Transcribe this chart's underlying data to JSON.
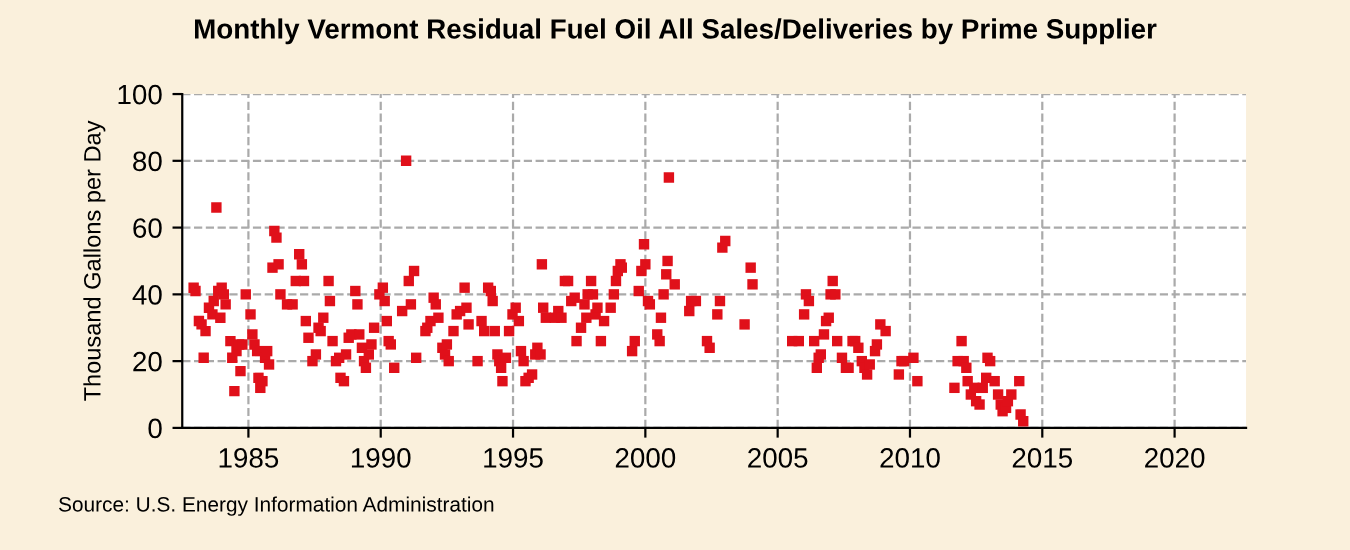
{
  "chart_data": {
    "type": "scatter",
    "title": "Monthly Vermont Residual Fuel Oil All Sales/Deliveries by Prime Supplier",
    "ylabel": "Thousand Gallons per Day",
    "annotations": [
      "Source: U.S. Energy Information Administration"
    ],
    "xlim": [
      1982.5,
      2022.7
    ],
    "xticks": [
      1985,
      1990,
      1995,
      2000,
      2005,
      2010,
      2015,
      2020
    ],
    "ylim": [
      0,
      100
    ],
    "yticks": [
      0,
      20,
      40,
      60,
      80,
      100
    ],
    "grid": true,
    "marker": "square",
    "legend": false,
    "series": [
      {
        "color": "#e0101a",
        "x": [
          1982.93,
          1983.0,
          1983.13,
          1983.23,
          1983.31,
          1983.38,
          1983.51,
          1983.64,
          1983.69,
          1983.79,
          1983.86,
          1983.94,
          1983.99,
          1984.07,
          1984.14,
          1984.32,
          1984.39,
          1984.47,
          1984.55,
          1984.65,
          1984.7,
          1984.77,
          1984.9,
          1985.08,
          1985.15,
          1985.23,
          1985.33,
          1985.38,
          1985.45,
          1985.53,
          1985.63,
          1985.71,
          1985.78,
          1985.91,
          1985.98,
          1986.06,
          1986.14,
          1986.21,
          1986.46,
          1986.67,
          1986.79,
          1986.92,
          1987.02,
          1987.1,
          1987.17,
          1987.27,
          1987.42,
          1987.55,
          1987.65,
          1987.73,
          1987.83,
          1988.03,
          1988.08,
          1988.18,
          1988.31,
          1988.43,
          1988.48,
          1988.61,
          1988.69,
          1988.79,
          1988.89,
          1989.04,
          1989.12,
          1989.19,
          1989.29,
          1989.37,
          1989.44,
          1989.55,
          1989.65,
          1989.75,
          1989.95,
          1990.08,
          1990.15,
          1990.23,
          1990.3,
          1990.38,
          1990.51,
          1990.81,
          1990.96,
          1991.06,
          1991.14,
          1991.26,
          1991.34,
          1991.69,
          1991.76,
          1991.88,
          1992.0,
          1992.08,
          1992.18,
          1992.33,
          1992.43,
          1992.5,
          1992.57,
          1992.75,
          1992.87,
          1993.0,
          1993.17,
          1993.24,
          1993.32,
          1993.66,
          1993.81,
          1993.91,
          1994.06,
          1994.16,
          1994.23,
          1994.31,
          1994.41,
          1994.48,
          1994.55,
          1994.6,
          1994.73,
          1994.85,
          1994.98,
          1995.1,
          1995.22,
          1995.3,
          1995.4,
          1995.47,
          1995.59,
          1995.72,
          1995.84,
          1995.92,
          1996.04,
          1996.09,
          1996.14,
          1996.24,
          1996.58,
          1996.71,
          1996.83,
          1996.96,
          1997.08,
          1997.2,
          1997.33,
          1997.4,
          1997.57,
          1997.7,
          1997.77,
          1997.82,
          1997.95,
          1998.02,
          1998.12,
          1998.19,
          1998.32,
          1998.44,
          1998.69,
          1998.81,
          1998.89,
          1998.96,
          1999.06,
          1999.11,
          1999.5,
          1999.6,
          1999.75,
          1999.85,
          1999.95,
          2000.0,
          2000.1,
          2000.17,
          2000.45,
          2000.54,
          2000.59,
          2000.69,
          2000.79,
          2000.84,
          2000.89,
          2001.11,
          2001.66,
          2001.73,
          2001.91,
          2002.33,
          2002.43,
          2002.72,
          2002.82,
          2002.91,
          2003.02,
          2003.75,
          2003.98,
          2004.05,
          2005.55,
          2005.8,
          2006.0,
          2006.07,
          2006.18,
          2006.38,
          2006.48,
          2006.55,
          2006.63,
          2006.75,
          2006.83,
          2006.93,
          2007.0,
          2007.08,
          2007.18,
          2007.25,
          2007.43,
          2007.58,
          2007.68,
          2007.83,
          2007.93,
          2008.05,
          2008.18,
          2008.28,
          2008.38,
          2008.48,
          2008.68,
          2008.75,
          2008.88,
          2009.08,
          2009.58,
          2009.68,
          2009.78,
          2010.13,
          2010.28,
          2011.68,
          2011.8,
          2011.95,
          2012.03,
          2012.13,
          2012.18,
          2012.3,
          2012.43,
          2012.5,
          2012.63,
          2012.75,
          2012.88,
          2012.93,
          2013.03,
          2013.2,
          2013.33,
          2013.43,
          2013.5,
          2013.63,
          2013.7,
          2013.83,
          2014.13,
          2014.18,
          2014.28
        ],
        "values": [
          42,
          41,
          32,
          31,
          21,
          29,
          36,
          34,
          38,
          66,
          41,
          33,
          42,
          40,
          37,
          26,
          21,
          11,
          23,
          25,
          17,
          25,
          40,
          34,
          28,
          25,
          23,
          15,
          12,
          14,
          21,
          23,
          19,
          48,
          59,
          57,
          49,
          40,
          37,
          37,
          44,
          52,
          49,
          44,
          32,
          27,
          20,
          22,
          30,
          29,
          33,
          44,
          38,
          26,
          20,
          21,
          15,
          14,
          22,
          27,
          28,
          41,
          37,
          28,
          24,
          20,
          18,
          22,
          25,
          30,
          40,
          42,
          38,
          32,
          26,
          25,
          18,
          35,
          80,
          44,
          37,
          47,
          21,
          29,
          30,
          32,
          39,
          37,
          33,
          24,
          22,
          25,
          20,
          29,
          34,
          35,
          42,
          36,
          31,
          20,
          32,
          29,
          42,
          41,
          38,
          29,
          22,
          20,
          18,
          14,
          21,
          29,
          34,
          36,
          32,
          23,
          20,
          14,
          15,
          16,
          22,
          24,
          22,
          49,
          36,
          33,
          33,
          35,
          33,
          44,
          44,
          38,
          39,
          26,
          30,
          37,
          33,
          40,
          44,
          40,
          34,
          36,
          26,
          32,
          36,
          40,
          44,
          47,
          49,
          48,
          23,
          26,
          41,
          47,
          55,
          49,
          38,
          37,
          28,
          26,
          33,
          40,
          46,
          50,
          75,
          43,
          35,
          38,
          38,
          26,
          24,
          34,
          38,
          54,
          56,
          31,
          48,
          43,
          26,
          26,
          34,
          40,
          38,
          26,
          18,
          21,
          22,
          28,
          32,
          33,
          40,
          44,
          40,
          26,
          21,
          18,
          18,
          26,
          26,
          24,
          20,
          18,
          16,
          19,
          23,
          25,
          31,
          29,
          16,
          20,
          20,
          21,
          14,
          12,
          20,
          26,
          20,
          18,
          14,
          10,
          12,
          8,
          7,
          12,
          15,
          21,
          20,
          14,
          10,
          7,
          5,
          6,
          8,
          10,
          14,
          4,
          2
        ]
      }
    ]
  }
}
